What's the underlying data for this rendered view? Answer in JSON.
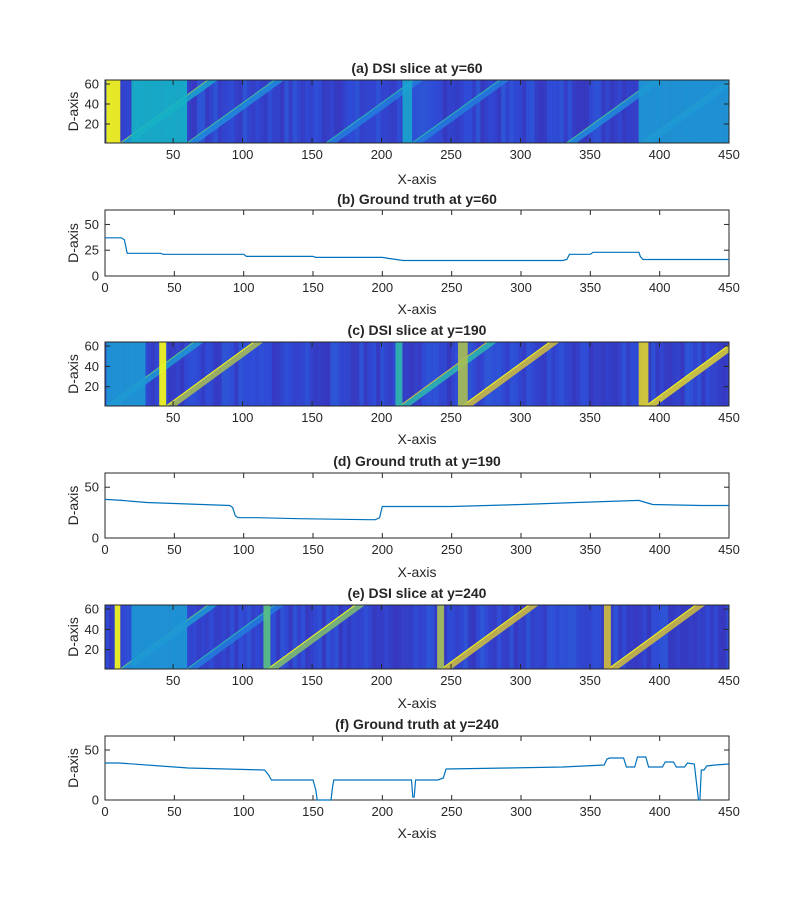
{
  "chart_data": [
    {
      "type": "heatmap",
      "title": "(a) DSI slice at y=60",
      "xlabel": "X-axis",
      "ylabel": "D-axis",
      "xlim": [
        1,
        450
      ],
      "ylim": [
        1,
        64
      ],
      "xticks": [
        50,
        100,
        150,
        200,
        250,
        300,
        350,
        400,
        450
      ],
      "yticks": [
        20,
        40,
        60
      ],
      "colormap": "parula",
      "colors": {
        "low": "#3e26a8",
        "mid": "#16b3c5",
        "high": "#f9fb15"
      },
      "hot_bands": [
        {
          "x": [
            2,
            12
          ],
          "intensity": 1.0
        },
        {
          "x": [
            20,
            60
          ],
          "intensity": 0.55
        },
        {
          "x": [
            215,
            222
          ],
          "intensity": 0.5
        },
        {
          "x": [
            385,
            450
          ],
          "intensity": 0.45
        }
      ],
      "diagonal_edges": [
        {
          "x_start": 12,
          "slope": 1.0,
          "intensity": 0.5
        },
        {
          "x_start": 60,
          "slope": 1.0,
          "intensity": 0.4
        },
        {
          "x_start": 160,
          "slope": 1.0,
          "intensity": 0.35
        },
        {
          "x_start": 222,
          "slope": 1.0,
          "intensity": 0.35
        },
        {
          "x_start": 333,
          "slope": 1.0,
          "intensity": 0.4
        },
        {
          "x_start": 387,
          "slope": 1.0,
          "intensity": 0.45
        }
      ]
    },
    {
      "type": "line",
      "title": "(b) Ground truth at y=60",
      "xlabel": "X-axis",
      "ylabel": "D-axis",
      "xlim": [
        0,
        450
      ],
      "ylim": [
        0,
        64
      ],
      "xticks": [
        0,
        50,
        100,
        150,
        200,
        250,
        300,
        350,
        400,
        450
      ],
      "yticks": [
        0,
        25,
        50
      ],
      "line_color": "#0072bd",
      "x": [
        0,
        12,
        14,
        16,
        40,
        42,
        100,
        102,
        150,
        152,
        200,
        205,
        215,
        300,
        330,
        333,
        335,
        350,
        352,
        385,
        386,
        388,
        450
      ],
      "y": [
        37,
        37,
        35,
        22,
        22,
        21,
        21,
        19,
        19,
        18,
        18,
        17,
        15,
        15,
        15,
        16,
        21,
        21,
        23,
        23,
        19,
        16,
        16
      ]
    },
    {
      "type": "heatmap",
      "title": "(c) DSI slice at y=190",
      "xlabel": "X-axis",
      "ylabel": "D-axis",
      "xlim": [
        1,
        450
      ],
      "ylim": [
        1,
        64
      ],
      "xticks": [
        50,
        100,
        150,
        200,
        250,
        300,
        350,
        400,
        450
      ],
      "yticks": [
        20,
        40,
        60
      ],
      "colormap": "parula",
      "colors": {
        "low": "#3e26a8",
        "mid": "#16b3c5",
        "high": "#f9fb15"
      },
      "hot_bands": [
        {
          "x": [
            2,
            30
          ],
          "intensity": 0.45
        },
        {
          "x": [
            40,
            45
          ],
          "intensity": 1.0
        },
        {
          "x": [
            210,
            215
          ],
          "intensity": 0.6
        },
        {
          "x": [
            255,
            262
          ],
          "intensity": 0.8
        },
        {
          "x": [
            385,
            392
          ],
          "intensity": 0.9
        }
      ],
      "diagonal_edges": [
        {
          "x_start": 2,
          "slope": 1.0,
          "intensity": 0.45
        },
        {
          "x_start": 45,
          "slope": 1.0,
          "intensity": 0.8
        },
        {
          "x_start": 213,
          "slope": 1.0,
          "intensity": 0.6
        },
        {
          "x_start": 258,
          "slope": 1.0,
          "intensity": 0.85
        },
        {
          "x_start": 390,
          "slope": 1.0,
          "intensity": 0.9
        }
      ]
    },
    {
      "type": "line",
      "title": "(d) Ground truth at y=190",
      "xlabel": "X-axis",
      "ylabel": "D-axis",
      "xlim": [
        0,
        450
      ],
      "ylim": [
        0,
        64
      ],
      "xticks": [
        0,
        50,
        100,
        150,
        200,
        250,
        300,
        350,
        400,
        450
      ],
      "yticks": [
        0,
        50
      ],
      "line_color": "#0072bd",
      "x": [
        0,
        12,
        30,
        50,
        90,
        92,
        94,
        96,
        110,
        140,
        190,
        195,
        198,
        200,
        250,
        300,
        340,
        385,
        390,
        395,
        430,
        450
      ],
      "y": [
        38,
        37,
        35,
        34,
        32,
        30,
        22,
        20,
        20,
        19,
        18,
        18,
        20,
        31,
        31,
        33,
        35,
        37,
        35,
        33,
        32,
        32
      ]
    },
    {
      "type": "heatmap",
      "title": "(e) DSI slice at y=240",
      "xlabel": "X-axis",
      "ylabel": "D-axis",
      "xlim": [
        1,
        450
      ],
      "ylim": [
        1,
        64
      ],
      "xticks": [
        50,
        100,
        150,
        200,
        250,
        300,
        350,
        400,
        450
      ],
      "yticks": [
        20,
        40,
        60
      ],
      "colormap": "parula",
      "colors": {
        "low": "#3e26a8",
        "mid": "#16b3c5",
        "high": "#f9fb15"
      },
      "hot_bands": [
        {
          "x": [
            8,
            12
          ],
          "intensity": 1.0
        },
        {
          "x": [
            20,
            60
          ],
          "intensity": 0.45
        },
        {
          "x": [
            115,
            120
          ],
          "intensity": 0.7
        },
        {
          "x": [
            240,
            245
          ],
          "intensity": 0.8
        },
        {
          "x": [
            360,
            365
          ],
          "intensity": 0.85
        }
      ],
      "diagonal_edges": [
        {
          "x_start": 12,
          "slope": 1.0,
          "intensity": 0.45
        },
        {
          "x_start": 60,
          "slope": 1.0,
          "intensity": 0.35
        },
        {
          "x_start": 118,
          "slope": 1.0,
          "intensity": 0.75
        },
        {
          "x_start": 243,
          "slope": 1.0,
          "intensity": 0.85
        },
        {
          "x_start": 363,
          "slope": 1.0,
          "intensity": 0.85
        }
      ]
    },
    {
      "type": "line",
      "title": "(f) Ground truth at y=240",
      "xlabel": "X-axis",
      "ylabel": "D-axis",
      "xlim": [
        0,
        450
      ],
      "ylim": [
        0,
        64
      ],
      "xticks": [
        0,
        50,
        100,
        150,
        200,
        250,
        300,
        350,
        400,
        450
      ],
      "yticks": [
        0,
        50
      ],
      "line_color": "#0072bd",
      "x": [
        0,
        10,
        40,
        60,
        115,
        118,
        120,
        150,
        152,
        153,
        163,
        164,
        165,
        200,
        221,
        222,
        223,
        224,
        240,
        244,
        246,
        290,
        330,
        360,
        362,
        364,
        374,
        376,
        382,
        384,
        390,
        392,
        402,
        404,
        410,
        412,
        418,
        420,
        425,
        428,
        429,
        430,
        432,
        434,
        440,
        450
      ],
      "y": [
        37,
        37,
        34,
        32,
        30,
        25,
        20,
        20,
        10,
        0,
        0,
        12,
        20,
        20,
        20,
        3,
        3,
        20,
        20,
        22,
        31,
        32,
        33,
        35,
        41,
        42,
        42,
        33,
        33,
        43,
        43,
        33,
        33,
        38,
        38,
        33,
        33,
        37,
        36,
        0,
        0,
        30,
        30,
        34,
        35,
        36
      ]
    }
  ]
}
